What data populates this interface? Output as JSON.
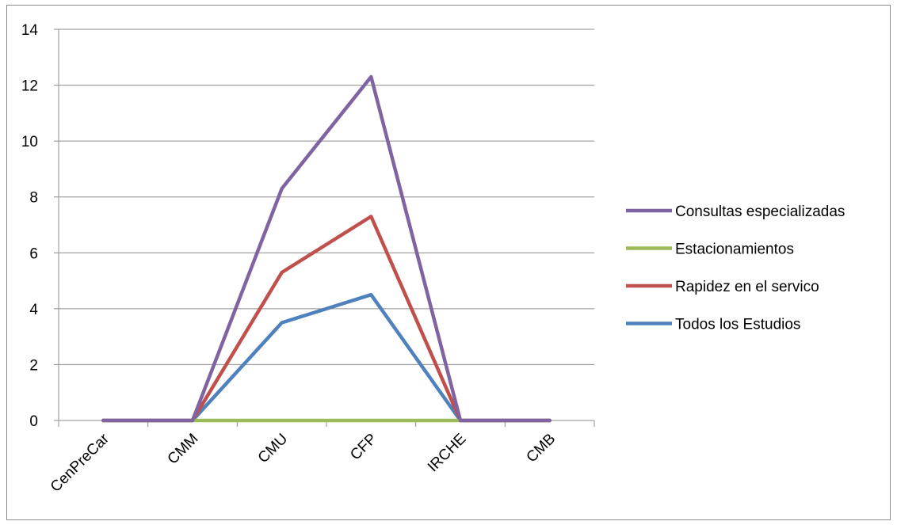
{
  "chart_data": {
    "type": "line",
    "title": "",
    "xlabel": "",
    "ylabel": "",
    "categories": [
      "CenPreCar",
      "CMM",
      "CMU",
      "CFP",
      "IRCHE",
      "CMB"
    ],
    "ylim": [
      0,
      14
    ],
    "yticks": [
      "0",
      "2",
      "4",
      "6",
      "8",
      "10",
      "12",
      "14"
    ],
    "grid": true,
    "legend_position": "right",
    "series": [
      {
        "name": "Todos los Estudios",
        "color": "#4f81bd",
        "values": [
          0,
          0,
          3.5,
          4.5,
          0,
          0
        ]
      },
      {
        "name": "Rapidez en el servico",
        "color": "#c0504d",
        "values": [
          0,
          0,
          5.3,
          7.3,
          0,
          0
        ]
      },
      {
        "name": "Estacionamientos",
        "color": "#9bbb59",
        "values": [
          0,
          0,
          0,
          0,
          0,
          0
        ]
      },
      {
        "name": "Consultas especializadas",
        "color": "#8064a2",
        "values": [
          0,
          0,
          8.3,
          12.3,
          0,
          0
        ]
      }
    ],
    "legend_order": [
      "Consultas especializadas",
      "Estacionamientos",
      "Rapidez en el servico",
      "Todos los Estudios"
    ]
  }
}
